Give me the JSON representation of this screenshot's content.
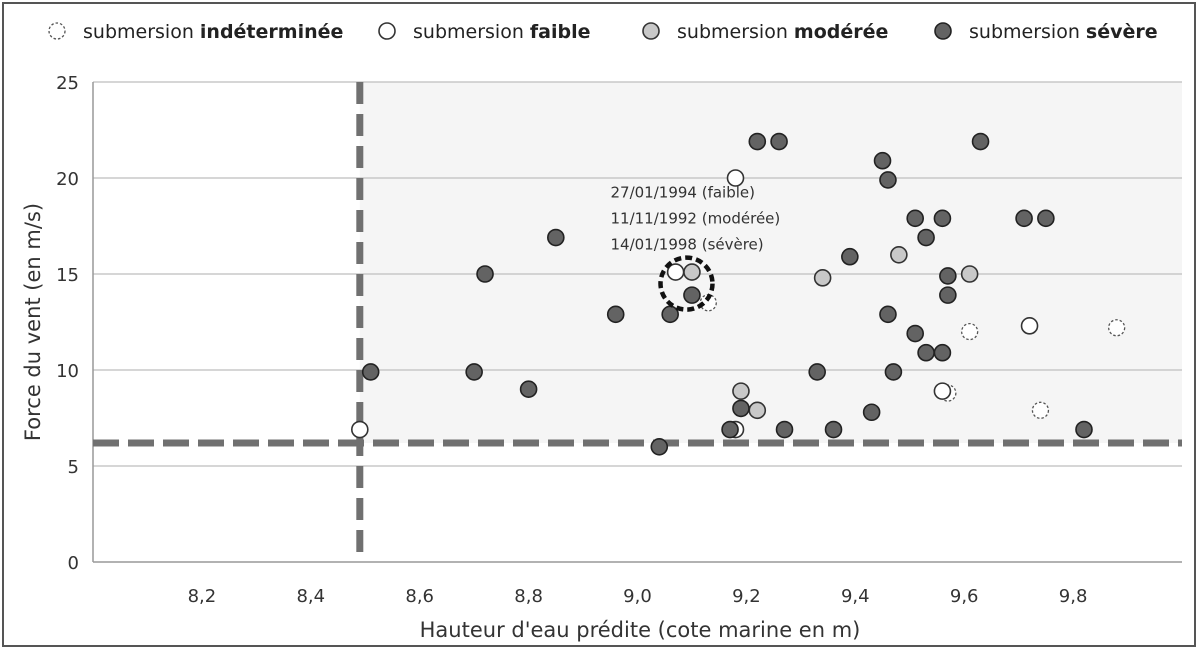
{
  "chart_data": {
    "type": "scatter",
    "xlabel": "Hauteur d'eau prédite (cote marine en m)",
    "ylabel": "Force du vent (en m/s)",
    "xlim": [
      8.0,
      10.0
    ],
    "ylim": [
      0,
      25
    ],
    "x_ticks": [
      {
        "value": 8.2,
        "label": "8,2"
      },
      {
        "value": 8.4,
        "label": "8,4"
      },
      {
        "value": 8.6,
        "label": "8,6"
      },
      {
        "value": 8.8,
        "label": "8,8"
      },
      {
        "value": 9.0,
        "label": "9,0"
      },
      {
        "value": 9.2,
        "label": "9,2"
      },
      {
        "value": 9.4,
        "label": "9,4"
      },
      {
        "value": 9.6,
        "label": "9,6"
      },
      {
        "value": 9.8,
        "label": "9,8"
      }
    ],
    "y_ticks": [
      {
        "value": 0,
        "label": "0"
      },
      {
        "value": 5,
        "label": "5"
      },
      {
        "value": 10,
        "label": "10"
      },
      {
        "value": 15,
        "label": "15"
      },
      {
        "value": 20,
        "label": "20"
      },
      {
        "value": 25,
        "label": "25"
      }
    ],
    "grid": "horizontal",
    "legend_position": "top",
    "thresholds": {
      "x": 8.49,
      "y": 6.2
    },
    "colors": {
      "indeterminee": "#ffffff",
      "faible": "#ffffff",
      "moderee": "#c8c8c8",
      "severe": "#636363",
      "threshold": "#707070",
      "shade": "#f5f5f5",
      "grid": "#c8c8c8"
    },
    "series": [
      {
        "key": "indeterminee",
        "name_prefix": "submersion ",
        "name_bold": "indéterminée",
        "points": [
          [
            9.13,
            13.5
          ],
          [
            9.57,
            8.8
          ],
          [
            9.61,
            12.0
          ],
          [
            9.74,
            7.9
          ],
          [
            9.88,
            12.2
          ]
        ]
      },
      {
        "key": "faible",
        "name_prefix": "submersion ",
        "name_bold": "faible",
        "points": [
          [
            8.49,
            6.9
          ],
          [
            9.07,
            15.1
          ],
          [
            9.18,
            20.0
          ],
          [
            9.18,
            6.9
          ],
          [
            9.56,
            8.9
          ],
          [
            9.72,
            12.3
          ]
        ]
      },
      {
        "key": "moderee",
        "name_prefix": "submersion ",
        "name_bold": "modérée",
        "points": [
          [
            9.1,
            15.1
          ],
          [
            9.19,
            8.9
          ],
          [
            9.22,
            7.9
          ],
          [
            9.34,
            14.8
          ],
          [
            9.48,
            16.0
          ],
          [
            9.61,
            15.0
          ]
        ]
      },
      {
        "key": "severe",
        "name_prefix": "submersion ",
        "name_bold": "sévère",
        "points": [
          [
            8.51,
            9.9
          ],
          [
            8.7,
            9.9
          ],
          [
            8.72,
            15.0
          ],
          [
            8.8,
            9.0
          ],
          [
            8.85,
            16.9
          ],
          [
            8.96,
            12.9
          ],
          [
            9.04,
            6.0
          ],
          [
            9.06,
            12.9
          ],
          [
            9.1,
            13.9
          ],
          [
            9.17,
            6.9
          ],
          [
            9.19,
            8.0
          ],
          [
            9.22,
            21.9
          ],
          [
            9.26,
            21.9
          ],
          [
            9.27,
            6.9
          ],
          [
            9.33,
            9.9
          ],
          [
            9.36,
            6.9
          ],
          [
            9.39,
            15.9
          ],
          [
            9.43,
            7.8
          ],
          [
            9.45,
            20.9
          ],
          [
            9.46,
            19.9
          ],
          [
            9.46,
            12.9
          ],
          [
            9.47,
            9.9
          ],
          [
            9.51,
            17.9
          ],
          [
            9.51,
            11.9
          ],
          [
            9.53,
            16.9
          ],
          [
            9.53,
            10.9
          ],
          [
            9.56,
            17.9
          ],
          [
            9.56,
            10.9
          ],
          [
            9.57,
            14.9
          ],
          [
            9.57,
            13.9
          ],
          [
            9.63,
            21.9
          ],
          [
            9.71,
            17.9
          ],
          [
            9.75,
            17.9
          ],
          [
            9.82,
            6.9
          ]
        ]
      }
    ],
    "annotation": {
      "lines": [
        "27/01/1994 (faible)",
        "11/11/1992 (modérée)",
        "14/01/1998 (sévère)"
      ],
      "circle_center": [
        9.09,
        14.5
      ]
    }
  }
}
